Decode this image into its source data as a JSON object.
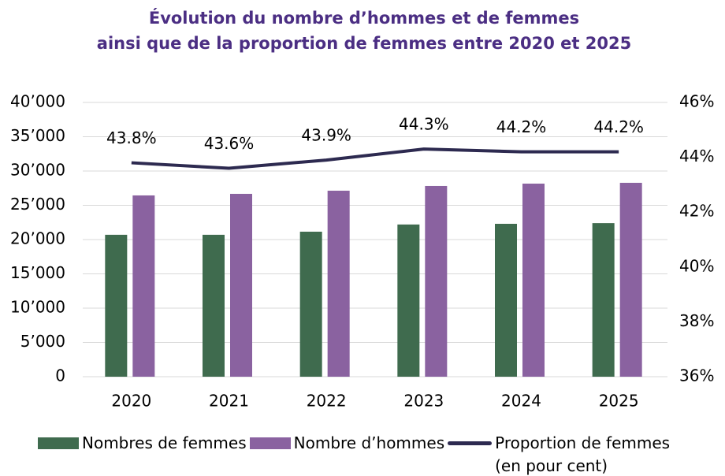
{
  "chart_data": {
    "type": "bar_line",
    "title": [
      "Évolution du nombre d’hommes et de femmes",
      "ainsi que de la proportion de femmes entre 2020 et 2025"
    ],
    "categories": [
      "2020",
      "2021",
      "2022",
      "2023",
      "2024",
      "2025"
    ],
    "series": [
      {
        "name": "Nombres de femmes",
        "color": "#3f6b4e",
        "type": "bar",
        "values": [
          20700,
          20700,
          21150,
          22200,
          22300,
          22400
        ]
      },
      {
        "name": "Nombre d’hommes",
        "color": "#8a62a0",
        "type": "bar",
        "values": [
          26440,
          26670,
          27130,
          27820,
          28160,
          28280
        ]
      },
      {
        "name": "Proportion de femmes (en pour cent)",
        "color": "#2d2a50",
        "type": "line",
        "axis": "y2",
        "values": [
          43.8,
          43.6,
          43.9,
          44.3,
          44.2,
          44.2
        ],
        "value_labels": [
          "43.8%",
          "43.6%",
          "43.9%",
          "44.3%",
          "44.2%",
          "44.2%"
        ]
      }
    ],
    "ylim": [
      0,
      40000
    ],
    "yticks": [
      0,
      {
        "value": 5000,
        "label": "5’000"
      },
      {
        "value": 10000,
        "label": "10’000"
      },
      {
        "value": 15000,
        "label": "15’000"
      },
      {
        "value": 20000,
        "label": "20’000"
      },
      {
        "value": 25000,
        "label": "25’000"
      },
      {
        "value": 30000,
        "label": "30’000"
      },
      {
        "value": 35000,
        "label": "35’000"
      },
      {
        "value": 40000,
        "label": "40’000"
      }
    ],
    "y2lim": [
      36,
      46
    ],
    "y2ticks": [
      {
        "value": 36,
        "label": "36%"
      },
      {
        "value": 38,
        "label": "38%"
      },
      {
        "value": 40,
        "label": "40%"
      },
      {
        "value": 42,
        "label": "42%"
      },
      {
        "value": 44,
        "label": "44%"
      },
      {
        "value": 46,
        "label": "46%"
      }
    ],
    "grid": true
  }
}
